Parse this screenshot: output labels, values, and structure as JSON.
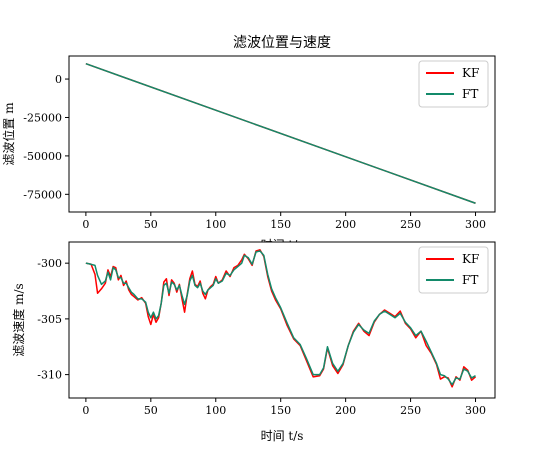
{
  "chart_data": [
    {
      "type": "line",
      "title": "滤波位置与速度",
      "xlabel": "时间 t/s",
      "ylabel": "滤波位置 m",
      "xlim": [
        -13,
        315
      ],
      "ylim": [
        -86500,
        15000
      ],
      "xticks": [
        0,
        50,
        100,
        150,
        200,
        250,
        300
      ],
      "yticks": [
        0,
        -25000,
        -50000,
        -75000
      ],
      "ytick_labels": [
        "0",
        "-25000",
        "-50000",
        "-75000"
      ],
      "legend": "top-right",
      "grid": false,
      "series": [
        {
          "name": "KF",
          "color": "#ff0000",
          "x": [
            0,
            300
          ],
          "y": [
            10000,
            -80800
          ]
        },
        {
          "name": "FT",
          "color": "#138a6a",
          "x": [
            0,
            300
          ],
          "y": [
            10000,
            -80800
          ]
        }
      ]
    },
    {
      "type": "line",
      "title": "",
      "xlabel": "时间 t/s",
      "ylabel": "滤波速度 m/s",
      "xlim": [
        -13,
        315
      ],
      "ylim": [
        -312.1,
        -298.1
      ],
      "xticks": [
        0,
        50,
        100,
        150,
        200,
        250,
        300
      ],
      "yticks": [
        -300,
        -305,
        -310
      ],
      "ytick_labels": [
        "-300",
        "-305",
        "-310"
      ],
      "legend": "top-right",
      "grid": false,
      "series": [
        {
          "name": "KF",
          "color": "#ff0000",
          "x": [
            0,
            4,
            7,
            9,
            12,
            15,
            17,
            19,
            21,
            23,
            25,
            27,
            29,
            31,
            33,
            35,
            37,
            40,
            43,
            46,
            48,
            50,
            52,
            54,
            56,
            58,
            60,
            62,
            64,
            66,
            68,
            70,
            72,
            74,
            76,
            78,
            80,
            82,
            84,
            86,
            88,
            90,
            92,
            94,
            96,
            98,
            100,
            102,
            105,
            108,
            111,
            114,
            117,
            120,
            122,
            125,
            128,
            131,
            134,
            137,
            140,
            143,
            146,
            150,
            155,
            160,
            165,
            170,
            175,
            180,
            183,
            186,
            190,
            194,
            198,
            202,
            206,
            210,
            214,
            218,
            222,
            226,
            230,
            234,
            238,
            242,
            246,
            250,
            254,
            258,
            262,
            266,
            270,
            273,
            276,
            279,
            282,
            285,
            288,
            291,
            294,
            297,
            300
          ],
          "y": [
            -300,
            -300.1,
            -301,
            -302.7,
            -302.3,
            -301.8,
            -300.6,
            -301.2,
            -300.3,
            -300.4,
            -301.5,
            -301.1,
            -302,
            -301.6,
            -302.4,
            -302.8,
            -303,
            -303.3,
            -303.1,
            -303.6,
            -304.8,
            -305.5,
            -304.6,
            -305.3,
            -304.9,
            -303.6,
            -301.7,
            -301.4,
            -302.9,
            -301.5,
            -301.8,
            -302.6,
            -301.9,
            -303.2,
            -304.4,
            -302.8,
            -301.4,
            -300.7,
            -301.9,
            -302.1,
            -301.6,
            -302.7,
            -303.2,
            -302.4,
            -302.1,
            -301.9,
            -301.2,
            -301.8,
            -301.5,
            -300.7,
            -301.2,
            -300.4,
            -300.2,
            -299.7,
            -299.2,
            -299.6,
            -300.2,
            -298.9,
            -298.8,
            -299.4,
            -301.2,
            -302.5,
            -303.3,
            -304.1,
            -305.6,
            -306.8,
            -307.4,
            -308.8,
            -310.2,
            -310.1,
            -309.5,
            -307.6,
            -309.2,
            -309.9,
            -309.1,
            -307.4,
            -306.1,
            -305.4,
            -306.1,
            -306.5,
            -305.3,
            -304.6,
            -304.2,
            -304.5,
            -304.8,
            -304.3,
            -305.4,
            -305.9,
            -306.7,
            -306.1,
            -307.4,
            -308.1,
            -309.1,
            -310.4,
            -310.2,
            -310.3,
            -311.1,
            -310.2,
            -310.5,
            -309.3,
            -309.6,
            -310.5,
            -310.2
          ]
        },
        {
          "name": "FT",
          "color": "#138a6a",
          "x": [
            0,
            4,
            7,
            9,
            12,
            15,
            17,
            19,
            21,
            23,
            25,
            27,
            29,
            31,
            33,
            35,
            37,
            40,
            43,
            46,
            48,
            50,
            52,
            54,
            56,
            58,
            60,
            62,
            64,
            66,
            68,
            70,
            72,
            74,
            76,
            78,
            80,
            82,
            84,
            86,
            88,
            90,
            92,
            94,
            96,
            98,
            100,
            102,
            105,
            108,
            111,
            114,
            117,
            120,
            122,
            125,
            128,
            131,
            134,
            137,
            140,
            143,
            146,
            150,
            155,
            160,
            165,
            170,
            175,
            180,
            183,
            186,
            190,
            194,
            198,
            202,
            206,
            210,
            214,
            218,
            222,
            226,
            230,
            234,
            238,
            242,
            246,
            250,
            254,
            258,
            262,
            266,
            270,
            273,
            276,
            279,
            282,
            285,
            288,
            291,
            294,
            297,
            300
          ],
          "y": [
            -300,
            -300.1,
            -300.2,
            -301.1,
            -301.9,
            -301.6,
            -300.8,
            -301.5,
            -300.4,
            -300.6,
            -301.3,
            -301.3,
            -301.8,
            -301.8,
            -302.2,
            -302.6,
            -302.8,
            -303.2,
            -303.2,
            -303.5,
            -304.4,
            -304.9,
            -304.4,
            -305,
            -304.7,
            -303.6,
            -302,
            -301.8,
            -302.7,
            -301.7,
            -301.9,
            -302.4,
            -302,
            -302.9,
            -303.7,
            -302.9,
            -301.6,
            -301.1,
            -302,
            -302.2,
            -301.8,
            -302.5,
            -302.8,
            -302.4,
            -302.2,
            -302,
            -301.4,
            -301.8,
            -301.6,
            -300.9,
            -301.1,
            -300.6,
            -300.3,
            -300,
            -299.3,
            -299.5,
            -300.1,
            -299,
            -298.9,
            -299.3,
            -301,
            -302.3,
            -303.1,
            -304,
            -305.4,
            -306.7,
            -307.3,
            -308.6,
            -310,
            -310,
            -309.4,
            -307.5,
            -309,
            -309.7,
            -309,
            -307.4,
            -306.2,
            -305.5,
            -306,
            -306.3,
            -305.2,
            -304.6,
            -304.3,
            -304.6,
            -304.9,
            -304.5,
            -305.3,
            -305.8,
            -306.5,
            -306.1,
            -307,
            -308,
            -309,
            -310,
            -310.1,
            -310.4,
            -310.9,
            -310.3,
            -310.4,
            -309.5,
            -309.7,
            -310.3,
            -310.1
          ]
        }
      ]
    }
  ]
}
